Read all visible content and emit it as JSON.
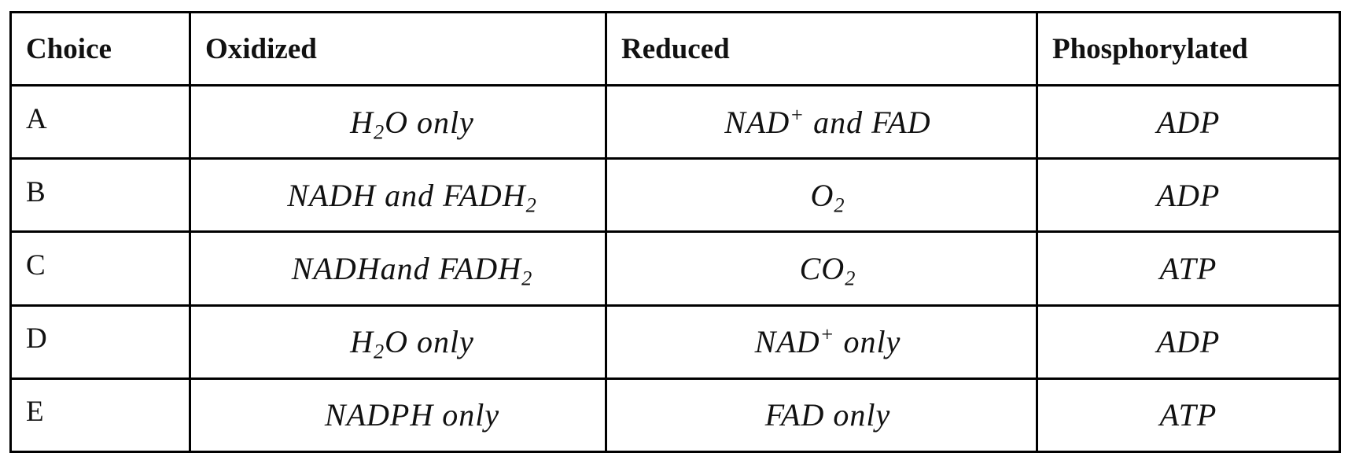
{
  "table": {
    "headers": [
      "Choice",
      "Oxidized",
      "Reduced",
      "Phosphorylated"
    ],
    "rows": [
      {
        "choice": "A",
        "oxidized": {
          "a": "H",
          "sub": "2",
          "b": "O only"
        },
        "reduced": {
          "a": "NAD",
          "sup": "+",
          "b": " and FAD"
        },
        "phosphorylated": "ADP"
      },
      {
        "choice": "B",
        "oxidized": {
          "a": "NADH and FADH",
          "sub": "2"
        },
        "reduced": {
          "a": "O",
          "sub": "2"
        },
        "phosphorylated": "ADP"
      },
      {
        "choice": "C",
        "oxidized": {
          "a": "NADHand FADH",
          "sub": "2"
        },
        "reduced": {
          "a": "CO",
          "sub": "2"
        },
        "phosphorylated": "ATP"
      },
      {
        "choice": "D",
        "oxidized": {
          "a": "H",
          "sub": "2",
          "b": "O only"
        },
        "reduced": {
          "a": "NAD",
          "sup": "+",
          "b": " only"
        },
        "phosphorylated": "ADP"
      },
      {
        "choice": "E",
        "oxidized": {
          "a": "NADPH only"
        },
        "reduced": {
          "a": "FAD only"
        },
        "phosphorylated": "ATP"
      }
    ]
  }
}
